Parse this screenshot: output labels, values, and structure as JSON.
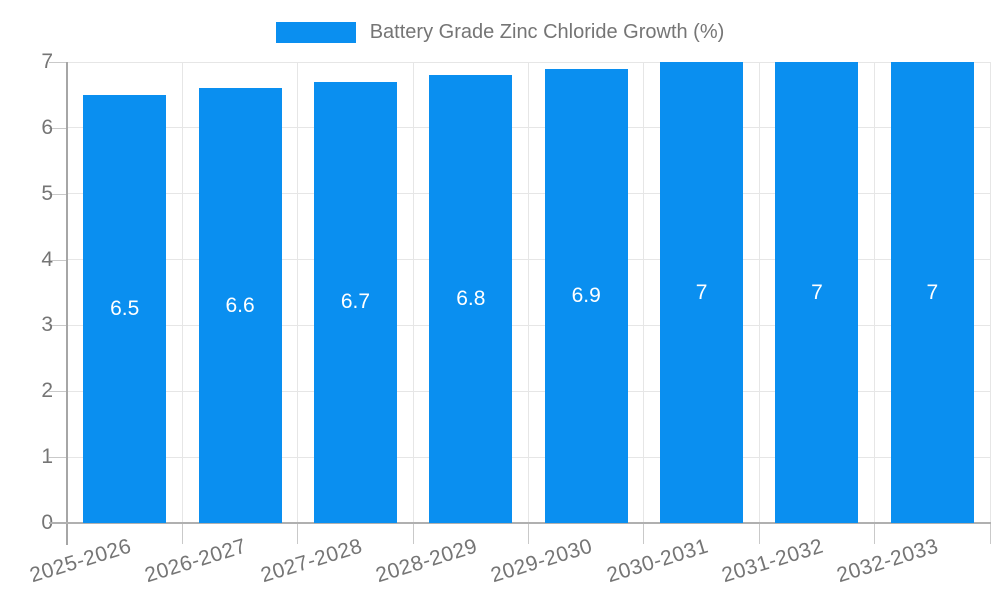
{
  "legend": {
    "label": "Battery Grade Zinc Chloride Growth (%)"
  },
  "chart_data": {
    "type": "bar",
    "title": "Battery Grade Zinc Chloride Growth (%)",
    "categories": [
      "2025-2026",
      "2026-2027",
      "2027-2028",
      "2028-2029",
      "2029-2030",
      "2030-2031",
      "2031-2032",
      "2032-2033"
    ],
    "values": [
      6.5,
      6.6,
      6.7,
      6.8,
      6.9,
      7,
      7,
      7
    ],
    "value_labels": [
      "6.5",
      "6.6",
      "6.7",
      "6.8",
      "6.9",
      "7",
      "7",
      "7"
    ],
    "series": [
      {
        "name": "Battery Grade Zinc Chloride Growth (%)",
        "values": [
          6.5,
          6.6,
          6.7,
          6.8,
          6.9,
          7,
          7,
          7
        ]
      }
    ],
    "xlabel": "",
    "ylabel": "",
    "ylim": [
      0,
      7
    ],
    "yticks": [
      0,
      1,
      2,
      3,
      4,
      5,
      6,
      7
    ],
    "grid": true,
    "legend_position": "top",
    "colors": {
      "bar": "#0A8FF0",
      "axis_text": "#757575",
      "gridline": "#e6e6e6",
      "axis_line": "#a6a6a6",
      "baseline": "#b0b0b0",
      "tick": "#c9c9c9",
      "bar_label": "#ffffff",
      "background": "#ffffff"
    }
  }
}
